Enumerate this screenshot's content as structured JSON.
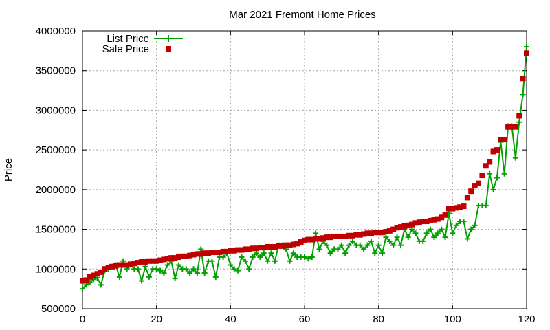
{
  "chart_data": {
    "type": "line",
    "title": "Mar 2021 Fremont Home Prices",
    "xlabel": "",
    "ylabel": "Price",
    "xlim": [
      0,
      120
    ],
    "ylim": [
      500000,
      4000000
    ],
    "x_ticks": [
      0,
      20,
      40,
      60,
      80,
      100,
      120
    ],
    "y_ticks": [
      500000,
      1000000,
      1500000,
      2000000,
      2500000,
      3000000,
      3500000,
      4000000
    ],
    "grid": true,
    "legend_position": "top-left",
    "series": [
      {
        "name": "List Price",
        "style": "linespoints",
        "color": "#00a000",
        "marker": "plus",
        "x": [
          0,
          1,
          2,
          3,
          4,
          5,
          6,
          7,
          8,
          9,
          10,
          11,
          12,
          13,
          14,
          15,
          16,
          17,
          18,
          19,
          20,
          21,
          22,
          23,
          24,
          25,
          26,
          27,
          28,
          29,
          30,
          31,
          32,
          33,
          34,
          35,
          36,
          37,
          38,
          39,
          40,
          41,
          42,
          43,
          44,
          45,
          46,
          47,
          48,
          49,
          50,
          51,
          52,
          53,
          54,
          55,
          56,
          57,
          58,
          59,
          60,
          61,
          62,
          63,
          64,
          65,
          66,
          67,
          68,
          69,
          70,
          71,
          72,
          73,
          74,
          75,
          76,
          77,
          78,
          79,
          80,
          81,
          82,
          83,
          84,
          85,
          86,
          87,
          88,
          89,
          90,
          91,
          92,
          93,
          94,
          95,
          96,
          97,
          98,
          99,
          100,
          101,
          102,
          103,
          104,
          105,
          106,
          107,
          108,
          109,
          110,
          111,
          112,
          113,
          114,
          115,
          116,
          117,
          118,
          119,
          120
        ],
        "y": [
          750000,
          800000,
          830000,
          870000,
          890000,
          800000,
          980000,
          1000000,
          1030000,
          1050000,
          900000,
          1100000,
          1000000,
          1050000,
          1000000,
          1000000,
          850000,
          1030000,
          900000,
          1000000,
          1000000,
          980000,
          950000,
          1050000,
          1100000,
          880000,
          1050000,
          1000000,
          1000000,
          950000,
          1000000,
          950000,
          1250000,
          950000,
          1100000,
          1100000,
          900000,
          1150000,
          1150000,
          1200000,
          1050000,
          1000000,
          980000,
          1150000,
          1100000,
          1000000,
          1150000,
          1200000,
          1150000,
          1200000,
          1100000,
          1200000,
          1100000,
          1300000,
          1300000,
          1250000,
          1100000,
          1200000,
          1150000,
          1150000,
          1150000,
          1130000,
          1150000,
          1450000,
          1250000,
          1350000,
          1300000,
          1200000,
          1250000,
          1250000,
          1300000,
          1200000,
          1300000,
          1350000,
          1300000,
          1300000,
          1250000,
          1300000,
          1350000,
          1200000,
          1300000,
          1200000,
          1400000,
          1350000,
          1300000,
          1400000,
          1300000,
          1500000,
          1400000,
          1500000,
          1450000,
          1350000,
          1350000,
          1450000,
          1500000,
          1400000,
          1450000,
          1500000,
          1400000,
          1700000,
          1450000,
          1550000,
          1600000,
          1600000,
          1380000,
          1500000,
          1550000,
          1800000,
          1800000,
          1800000,
          2200000,
          2000000,
          2150000,
          2600000,
          2200000,
          2800000,
          2800000,
          2400000,
          2850000,
          3200000,
          3800000
        ]
      },
      {
        "name": "Sale Price",
        "style": "points",
        "color": "#c00000",
        "marker": "square",
        "x": [
          0,
          1,
          2,
          3,
          4,
          5,
          6,
          7,
          8,
          9,
          10,
          11,
          12,
          13,
          14,
          15,
          16,
          17,
          18,
          19,
          20,
          21,
          22,
          23,
          24,
          25,
          26,
          27,
          28,
          29,
          30,
          31,
          32,
          33,
          34,
          35,
          36,
          37,
          38,
          39,
          40,
          41,
          42,
          43,
          44,
          45,
          46,
          47,
          48,
          49,
          50,
          51,
          52,
          53,
          54,
          55,
          56,
          57,
          58,
          59,
          60,
          61,
          62,
          63,
          64,
          65,
          66,
          67,
          68,
          69,
          70,
          71,
          72,
          73,
          74,
          75,
          76,
          77,
          78,
          79,
          80,
          81,
          82,
          83,
          84,
          85,
          86,
          87,
          88,
          89,
          90,
          91,
          92,
          93,
          94,
          95,
          96,
          97,
          98,
          99,
          100,
          101,
          102,
          103,
          104,
          105,
          106,
          107,
          108,
          109,
          110,
          111,
          112,
          113,
          114,
          115,
          116,
          117,
          118,
          119,
          120
        ],
        "y": [
          850000,
          860000,
          900000,
          920000,
          940000,
          960000,
          1000000,
          1020000,
          1030000,
          1040000,
          1050000,
          1050000,
          1050000,
          1060000,
          1070000,
          1080000,
          1090000,
          1090000,
          1100000,
          1100000,
          1100000,
          1110000,
          1120000,
          1130000,
          1140000,
          1140000,
          1150000,
          1160000,
          1160000,
          1170000,
          1180000,
          1190000,
          1190000,
          1200000,
          1200000,
          1210000,
          1210000,
          1210000,
          1220000,
          1220000,
          1230000,
          1230000,
          1240000,
          1240000,
          1250000,
          1250000,
          1260000,
          1260000,
          1270000,
          1270000,
          1280000,
          1280000,
          1280000,
          1290000,
          1290000,
          1300000,
          1300000,
          1310000,
          1320000,
          1340000,
          1360000,
          1370000,
          1370000,
          1380000,
          1380000,
          1390000,
          1400000,
          1400000,
          1410000,
          1410000,
          1410000,
          1410000,
          1420000,
          1420000,
          1430000,
          1430000,
          1440000,
          1450000,
          1450000,
          1460000,
          1460000,
          1460000,
          1470000,
          1480000,
          1500000,
          1520000,
          1530000,
          1540000,
          1550000,
          1560000,
          1580000,
          1590000,
          1600000,
          1600000,
          1610000,
          1620000,
          1630000,
          1650000,
          1680000,
          1760000,
          1760000,
          1770000,
          1780000,
          1790000,
          1900000,
          1980000,
          2050000,
          2080000,
          2180000,
          2300000,
          2350000,
          2480000,
          2500000,
          2630000,
          2630000,
          2790000,
          2790000,
          2790000,
          2930000,
          3400000,
          3720000
        ]
      }
    ]
  }
}
